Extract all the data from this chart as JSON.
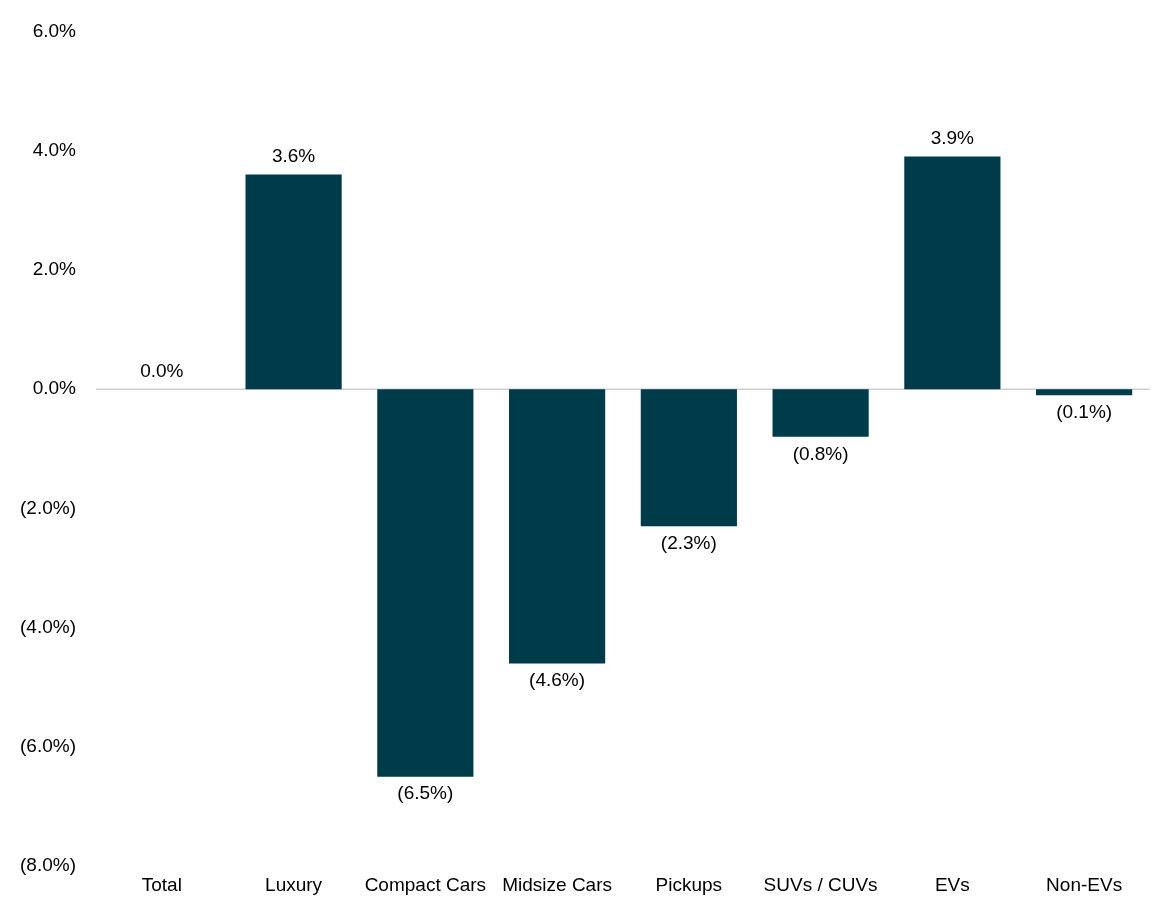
{
  "chart_data": {
    "type": "bar",
    "categories": [
      "Total",
      "Luxury",
      "Compact Cars",
      "Midsize Cars",
      "Pickups",
      "SUVs / CUVs",
      "EVs",
      "Non-EVs"
    ],
    "values": [
      0.0,
      3.6,
      -6.5,
      -4.6,
      -2.3,
      -0.8,
      3.9,
      -0.1
    ],
    "value_labels": [
      "0.0%",
      "3.6%",
      "(6.5%)",
      "(4.6%)",
      "(2.3%)",
      "(0.8%)",
      "3.9%",
      "(0.1%)"
    ],
    "color": "#003b4a",
    "ylim": [
      -8,
      6
    ],
    "yticks": [
      {
        "value": -8,
        "label": "(8.0%)"
      },
      {
        "value": -6,
        "label": "(6.0%)"
      },
      {
        "value": -4,
        "label": "(4.0%)"
      },
      {
        "value": -2,
        "label": "(2.0%)"
      },
      {
        "value": 0,
        "label": "0.0%"
      },
      {
        "value": 2,
        "label": "2.0%"
      },
      {
        "value": 4,
        "label": "4.0%"
      },
      {
        "value": 6,
        "label": "6.0%"
      }
    ],
    "ref_lines": [
      {
        "axis": "y",
        "value": 0,
        "color": "#d0d0d0"
      }
    ],
    "grid": false,
    "legend": false
  }
}
